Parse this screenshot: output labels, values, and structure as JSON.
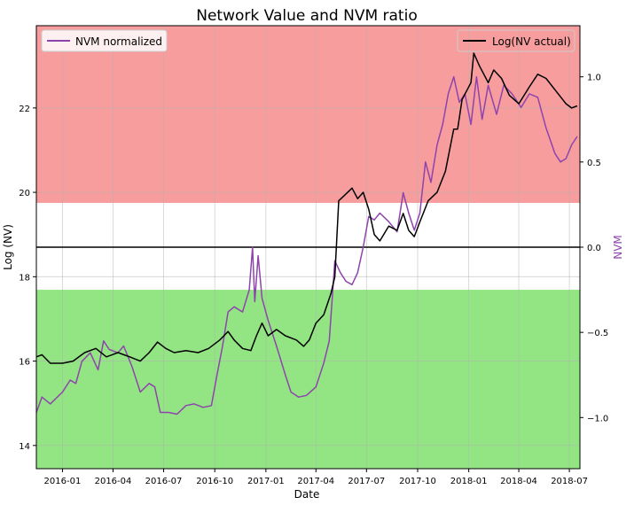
{
  "chart_data": {
    "type": "line",
    "title": "Network Value and NVM ratio",
    "xlabel": "Date",
    "ylabel_left": "Log (NV)",
    "ylabel_right": "NVM",
    "x_ticks": [
      "2016-01",
      "2016-04",
      "2016-07",
      "2016-10",
      "2017-01",
      "2017-04",
      "2017-07",
      "2017-10",
      "2018-01",
      "2018-04",
      "2018-07"
    ],
    "y_left_ticks": [
      "14",
      "16",
      "18",
      "20",
      "22"
    ],
    "y_right_ticks": [
      "−1.0",
      "−0.5",
      "0.0",
      "0.5",
      "1.0"
    ],
    "y_left_range": [
      13.45,
      23.95
    ],
    "y_right_range": [
      -1.3,
      1.3
    ],
    "x_range": [
      "2015-11-15",
      "2018-07-20"
    ],
    "grid": true,
    "bands": [
      {
        "name": "overvalued",
        "nvm_from": 0.26,
        "nvm_to": 1.3,
        "color": "#f47c7c"
      },
      {
        "name": "undervalued",
        "nvm_from": -1.3,
        "nvm_to": -0.25,
        "color": "#6fdc5a"
      }
    ],
    "reference_line": {
      "nvm": 0.0,
      "color": "#000000"
    },
    "legend_left": {
      "label": "NVM normalized",
      "color": "#8e44ad",
      "position": "top-left"
    },
    "legend_right": {
      "label": "Log(NV actual)",
      "color": "#000000",
      "position": "top-right"
    },
    "series": [
      {
        "name": "Log(NV actual)",
        "axis": "left",
        "color": "#000000",
        "points": [
          [
            "2015-11-15",
            16.1
          ],
          [
            "2015-11-25",
            16.15
          ],
          [
            "2015-12-10",
            15.95
          ],
          [
            "2016-01-01",
            15.95
          ],
          [
            "2016-01-20",
            16.0
          ],
          [
            "2016-02-10",
            16.2
          ],
          [
            "2016-03-01",
            16.3
          ],
          [
            "2016-03-20",
            16.1
          ],
          [
            "2016-04-10",
            16.2
          ],
          [
            "2016-05-01",
            16.1
          ],
          [
            "2016-05-20",
            16.0
          ],
          [
            "2016-06-05",
            16.2
          ],
          [
            "2016-06-20",
            16.45
          ],
          [
            "2016-07-05",
            16.3
          ],
          [
            "2016-07-20",
            16.2
          ],
          [
            "2016-08-10",
            16.25
          ],
          [
            "2016-09-01",
            16.2
          ],
          [
            "2016-09-20",
            16.3
          ],
          [
            "2016-10-10",
            16.5
          ],
          [
            "2016-10-25",
            16.7
          ],
          [
            "2016-11-05",
            16.5
          ],
          [
            "2016-11-20",
            16.3
          ],
          [
            "2016-12-05",
            16.25
          ],
          [
            "2016-12-15",
            16.6
          ],
          [
            "2016-12-25",
            16.9
          ],
          [
            "2017-01-05",
            16.6
          ],
          [
            "2017-01-20",
            16.75
          ],
          [
            "2017-02-05",
            16.6
          ],
          [
            "2017-02-25",
            16.5
          ],
          [
            "2017-03-10",
            16.35
          ],
          [
            "2017-03-20",
            16.5
          ],
          [
            "2017-04-01",
            16.9
          ],
          [
            "2017-04-15",
            17.1
          ],
          [
            "2017-04-28",
            17.6
          ],
          [
            "2017-05-05",
            18.0
          ],
          [
            "2017-05-12",
            19.8
          ],
          [
            "2017-05-20",
            19.9
          ],
          [
            "2017-06-05",
            20.1
          ],
          [
            "2017-06-15",
            19.85
          ],
          [
            "2017-06-25",
            20.0
          ],
          [
            "2017-07-05",
            19.6
          ],
          [
            "2017-07-15",
            19.0
          ],
          [
            "2017-07-25",
            18.85
          ],
          [
            "2017-08-10",
            19.2
          ],
          [
            "2017-08-25",
            19.1
          ],
          [
            "2017-09-05",
            19.5
          ],
          [
            "2017-09-15",
            19.1
          ],
          [
            "2017-09-25",
            18.95
          ],
          [
            "2017-10-05",
            19.3
          ],
          [
            "2017-10-20",
            19.8
          ],
          [
            "2017-11-05",
            20.0
          ],
          [
            "2017-11-20",
            20.5
          ],
          [
            "2017-12-05",
            21.5
          ],
          [
            "2017-12-12",
            21.5
          ],
          [
            "2017-12-20",
            22.2
          ],
          [
            "2018-01-05",
            22.6
          ],
          [
            "2018-01-10",
            23.3
          ],
          [
            "2018-01-20",
            23.0
          ],
          [
            "2018-02-05",
            22.6
          ],
          [
            "2018-02-15",
            22.9
          ],
          [
            "2018-03-01",
            22.7
          ],
          [
            "2018-03-15",
            22.3
          ],
          [
            "2018-04-01",
            22.1
          ],
          [
            "2018-04-20",
            22.5
          ],
          [
            "2018-05-05",
            22.8
          ],
          [
            "2018-05-20",
            22.7
          ],
          [
            "2018-06-10",
            22.35
          ],
          [
            "2018-06-25",
            22.1
          ],
          [
            "2018-07-05",
            22.0
          ],
          [
            "2018-07-15",
            22.05
          ]
        ]
      },
      {
        "name": "NVM normalized",
        "axis": "right",
        "color": "#8e44ad",
        "points": [
          [
            "2015-11-15",
            -0.97
          ],
          [
            "2015-11-25",
            -0.88
          ],
          [
            "2015-12-10",
            -0.92
          ],
          [
            "2016-01-01",
            -0.85
          ],
          [
            "2016-01-15",
            -0.78
          ],
          [
            "2016-01-25",
            -0.8
          ],
          [
            "2016-02-05",
            -0.67
          ],
          [
            "2016-02-20",
            -0.62
          ],
          [
            "2016-03-05",
            -0.72
          ],
          [
            "2016-03-15",
            -0.55
          ],
          [
            "2016-03-25",
            -0.6
          ],
          [
            "2016-04-10",
            -0.62
          ],
          [
            "2016-04-20",
            -0.58
          ],
          [
            "2016-05-05",
            -0.7
          ],
          [
            "2016-05-20",
            -0.85
          ],
          [
            "2016-06-05",
            -0.8
          ],
          [
            "2016-06-15",
            -0.82
          ],
          [
            "2016-06-25",
            -0.97
          ],
          [
            "2016-07-10",
            -0.97
          ],
          [
            "2016-07-25",
            -0.98
          ],
          [
            "2016-08-10",
            -0.93
          ],
          [
            "2016-08-25",
            -0.92
          ],
          [
            "2016-09-10",
            -0.94
          ],
          [
            "2016-09-25",
            -0.93
          ],
          [
            "2016-10-05",
            -0.75
          ],
          [
            "2016-10-15",
            -0.58
          ],
          [
            "2016-10-25",
            -0.38
          ],
          [
            "2016-11-05",
            -0.35
          ],
          [
            "2016-11-20",
            -0.38
          ],
          [
            "2016-12-02",
            -0.25
          ],
          [
            "2016-12-08",
            0.0
          ],
          [
            "2016-12-12",
            -0.32
          ],
          [
            "2016-12-18",
            -0.05
          ],
          [
            "2016-12-25",
            -0.3
          ],
          [
            "2017-01-05",
            -0.43
          ],
          [
            "2017-01-20",
            -0.58
          ],
          [
            "2017-02-05",
            -0.75
          ],
          [
            "2017-02-15",
            -0.85
          ],
          [
            "2017-03-01",
            -0.88
          ],
          [
            "2017-03-15",
            -0.87
          ],
          [
            "2017-04-01",
            -0.82
          ],
          [
            "2017-04-15",
            -0.68
          ],
          [
            "2017-04-25",
            -0.55
          ],
          [
            "2017-05-05",
            -0.08
          ],
          [
            "2017-05-15",
            -0.15
          ],
          [
            "2017-05-25",
            -0.2
          ],
          [
            "2017-06-05",
            -0.22
          ],
          [
            "2017-06-15",
            -0.15
          ],
          [
            "2017-06-25",
            0.0
          ],
          [
            "2017-07-05",
            0.18
          ],
          [
            "2017-07-15",
            0.16
          ],
          [
            "2017-07-25",
            0.2
          ],
          [
            "2017-08-10",
            0.15
          ],
          [
            "2017-08-25",
            0.09
          ],
          [
            "2017-09-05",
            0.32
          ],
          [
            "2017-09-15",
            0.2
          ],
          [
            "2017-09-25",
            0.1
          ],
          [
            "2017-10-05",
            0.2
          ],
          [
            "2017-10-15",
            0.5
          ],
          [
            "2017-10-25",
            0.38
          ],
          [
            "2017-11-05",
            0.6
          ],
          [
            "2017-11-15",
            0.72
          ],
          [
            "2017-11-25",
            0.9
          ],
          [
            "2017-12-05",
            1.0
          ],
          [
            "2017-12-15",
            0.85
          ],
          [
            "2017-12-25",
            0.9
          ],
          [
            "2018-01-05",
            0.72
          ],
          [
            "2018-01-15",
            1.0
          ],
          [
            "2018-01-25",
            0.75
          ],
          [
            "2018-02-05",
            0.95
          ],
          [
            "2018-02-20",
            0.78
          ],
          [
            "2018-03-05",
            0.95
          ],
          [
            "2018-03-20",
            0.9
          ],
          [
            "2018-04-05",
            0.82
          ],
          [
            "2018-04-20",
            0.9
          ],
          [
            "2018-05-05",
            0.88
          ],
          [
            "2018-05-20",
            0.7
          ],
          [
            "2018-06-05",
            0.55
          ],
          [
            "2018-06-15",
            0.5
          ],
          [
            "2018-06-25",
            0.52
          ],
          [
            "2018-07-05",
            0.6
          ],
          [
            "2018-07-15",
            0.65
          ]
        ]
      }
    ]
  }
}
